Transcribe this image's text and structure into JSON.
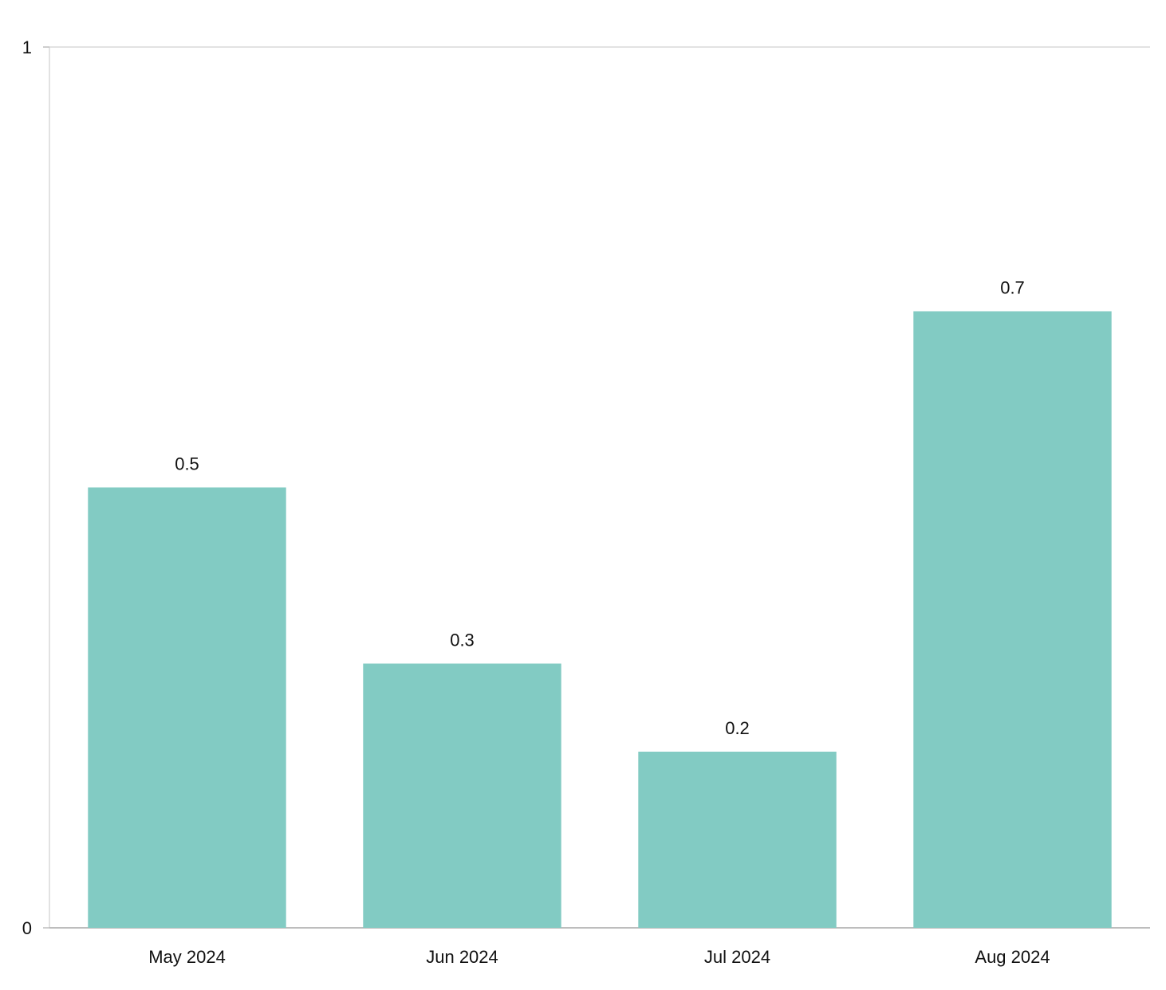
{
  "chart_data": {
    "type": "bar",
    "categories": [
      "May 2024",
      "Jun 2024",
      "Jul 2024",
      "Aug 2024"
    ],
    "values": [
      0.5,
      0.3,
      0.2,
      0.7
    ],
    "value_labels": [
      "0.5",
      "0.3",
      "0.2",
      "0.7"
    ],
    "title": "",
    "xlabel": "",
    "ylabel": "",
    "ylim": [
      0,
      1
    ],
    "y_ticks": [
      {
        "value": 0,
        "label": "0"
      },
      {
        "value": 1,
        "label": "1"
      }
    ],
    "grid": false,
    "legend": "none",
    "colors": {
      "bar": "#82cbc3",
      "axis": "#bdbdbd",
      "top_line": "#d9d9d9"
    }
  }
}
